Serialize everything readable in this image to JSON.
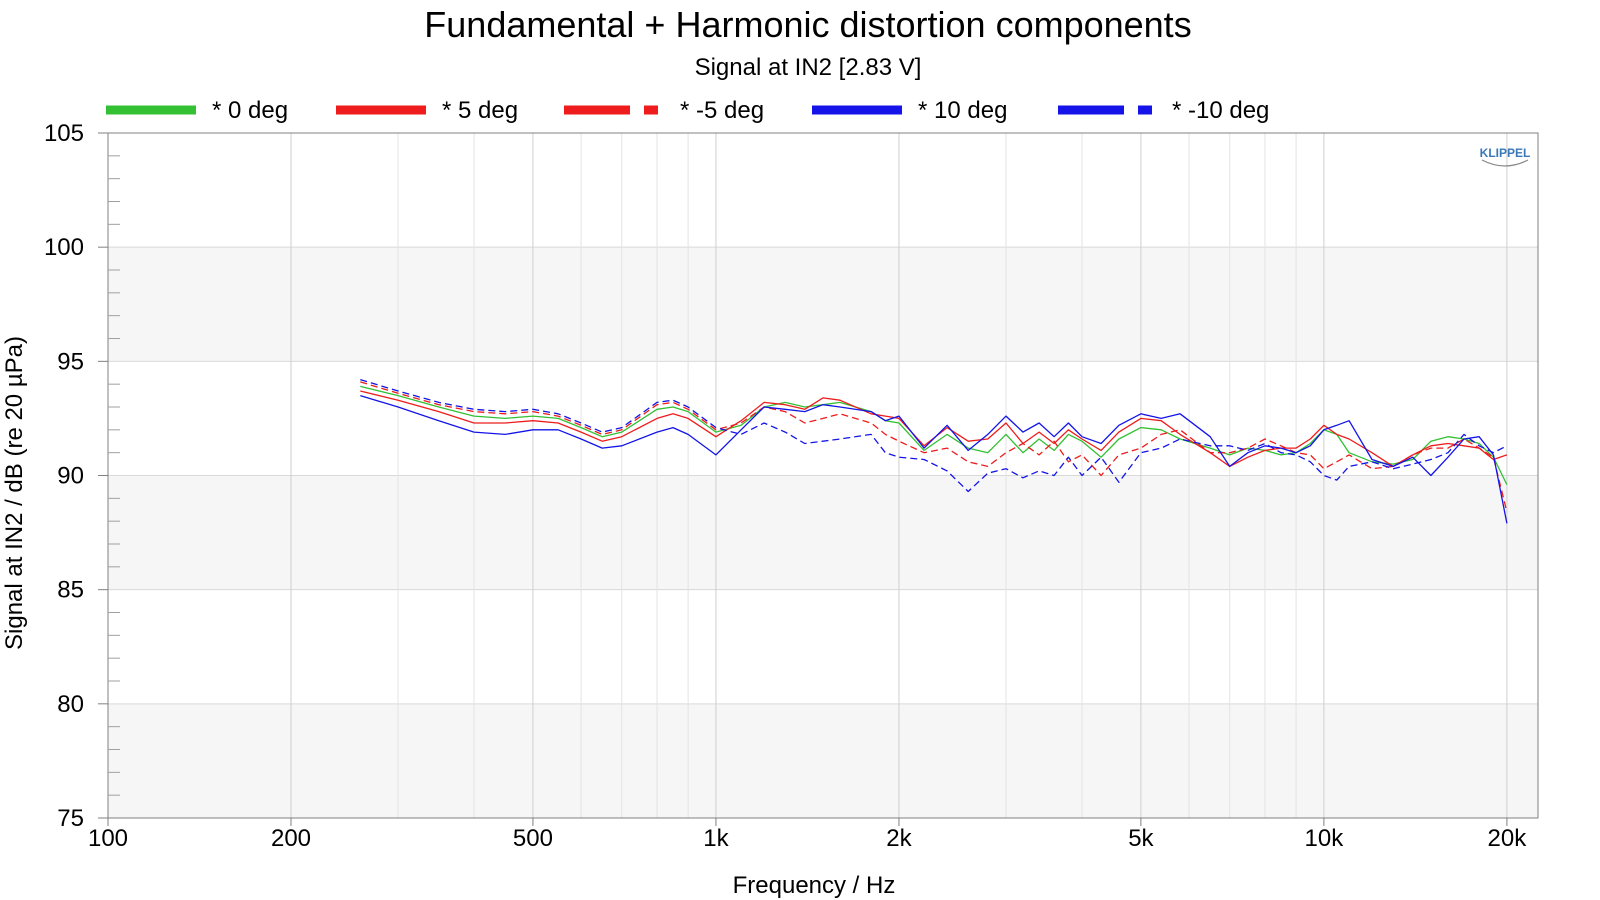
{
  "chart_data": {
    "type": "line",
    "title": "Fundamental + Harmonic distortion components",
    "subtitle": "Signal at IN2 [2.83 V]",
    "xlabel": "Frequency / Hz",
    "ylabel": "Signal at IN2 / dB (re 20 µPa)",
    "xscale": "log",
    "xlim": [
      100,
      22500
    ],
    "ylim": [
      75,
      105
    ],
    "x_ticks": [
      100,
      200,
      500,
      1000,
      2000,
      5000,
      10000,
      20000
    ],
    "x_tick_labels": [
      "100",
      "200",
      "500",
      "1k",
      "2k",
      "5k",
      "10k",
      "20k"
    ],
    "y_ticks": [
      75,
      80,
      85,
      90,
      95,
      100,
      105
    ],
    "y_tick_labels": [
      "75",
      "80",
      "85",
      "90",
      "95",
      "100",
      "105"
    ],
    "grid": true,
    "legend_position": "top",
    "logo_text": "KLIPPEL",
    "series": [
      {
        "name": "* 0 deg",
        "color": "#33c033",
        "dash": "solid",
        "points": [
          [
            260,
            93.9
          ],
          [
            300,
            93.5
          ],
          [
            350,
            93.0
          ],
          [
            400,
            92.6
          ],
          [
            450,
            92.5
          ],
          [
            500,
            92.6
          ],
          [
            550,
            92.5
          ],
          [
            600,
            92.1
          ],
          [
            650,
            91.7
          ],
          [
            700,
            91.9
          ],
          [
            800,
            92.9
          ],
          [
            850,
            93.0
          ],
          [
            900,
            92.8
          ],
          [
            1000,
            91.9
          ],
          [
            1100,
            92.2
          ],
          [
            1200,
            93.0
          ],
          [
            1300,
            93.2
          ],
          [
            1400,
            93.0
          ],
          [
            1500,
            93.1
          ],
          [
            1600,
            93.2
          ],
          [
            1800,
            92.8
          ],
          [
            1900,
            92.4
          ],
          [
            2000,
            92.3
          ],
          [
            2200,
            91.1
          ],
          [
            2400,
            91.8
          ],
          [
            2600,
            91.2
          ],
          [
            2800,
            91.0
          ],
          [
            3000,
            91.8
          ],
          [
            3200,
            91.0
          ],
          [
            3400,
            91.6
          ],
          [
            3600,
            91.1
          ],
          [
            3800,
            91.8
          ],
          [
            4000,
            91.5
          ],
          [
            4300,
            90.8
          ],
          [
            4600,
            91.6
          ],
          [
            5000,
            92.1
          ],
          [
            5400,
            92.0
          ],
          [
            5800,
            91.6
          ],
          [
            6500,
            91.2
          ],
          [
            7000,
            90.9
          ],
          [
            7500,
            91.2
          ],
          [
            8000,
            91.1
          ],
          [
            8500,
            90.9
          ],
          [
            9000,
            91.0
          ],
          [
            9500,
            91.4
          ],
          [
            10000,
            92.0
          ],
          [
            10500,
            91.8
          ],
          [
            11000,
            91.0
          ],
          [
            12000,
            90.6
          ],
          [
            13000,
            90.5
          ],
          [
            14000,
            90.7
          ],
          [
            15000,
            91.5
          ],
          [
            16000,
            91.7
          ],
          [
            17000,
            91.6
          ],
          [
            18000,
            91.4
          ],
          [
            19000,
            90.8
          ],
          [
            20000,
            89.6
          ]
        ]
      },
      {
        "name": "* 5 deg",
        "color": "#ee1c1c",
        "dash": "solid",
        "points": [
          [
            260,
            93.7
          ],
          [
            300,
            93.3
          ],
          [
            350,
            92.8
          ],
          [
            400,
            92.3
          ],
          [
            450,
            92.3
          ],
          [
            500,
            92.4
          ],
          [
            550,
            92.3
          ],
          [
            600,
            91.9
          ],
          [
            650,
            91.5
          ],
          [
            700,
            91.7
          ],
          [
            800,
            92.5
          ],
          [
            850,
            92.7
          ],
          [
            900,
            92.5
          ],
          [
            1000,
            91.7
          ],
          [
            1100,
            92.4
          ],
          [
            1200,
            93.2
          ],
          [
            1300,
            93.1
          ],
          [
            1400,
            92.9
          ],
          [
            1500,
            93.4
          ],
          [
            1600,
            93.3
          ],
          [
            1800,
            92.7
          ],
          [
            1900,
            92.6
          ],
          [
            2000,
            92.5
          ],
          [
            2200,
            91.3
          ],
          [
            2400,
            92.1
          ],
          [
            2600,
            91.5
          ],
          [
            2800,
            91.6
          ],
          [
            3000,
            92.3
          ],
          [
            3200,
            91.4
          ],
          [
            3400,
            91.9
          ],
          [
            3600,
            91.4
          ],
          [
            3800,
            92.0
          ],
          [
            4000,
            91.6
          ],
          [
            4300,
            91.1
          ],
          [
            4600,
            91.9
          ],
          [
            5000,
            92.5
          ],
          [
            5400,
            92.4
          ],
          [
            5800,
            91.8
          ],
          [
            6500,
            91.0
          ],
          [
            7000,
            90.4
          ],
          [
            7500,
            90.8
          ],
          [
            8000,
            91.1
          ],
          [
            8500,
            91.2
          ],
          [
            9000,
            91.2
          ],
          [
            9500,
            91.6
          ],
          [
            10000,
            92.2
          ],
          [
            10500,
            91.8
          ],
          [
            11000,
            91.6
          ],
          [
            12000,
            91.0
          ],
          [
            13000,
            90.4
          ],
          [
            14000,
            90.9
          ],
          [
            15000,
            91.3
          ],
          [
            16000,
            91.4
          ],
          [
            17000,
            91.3
          ],
          [
            18000,
            91.2
          ],
          [
            19000,
            90.7
          ],
          [
            20000,
            90.9
          ]
        ]
      },
      {
        "name": "* -5 deg",
        "color": "#ee1c1c",
        "dash": "dashed",
        "points": [
          [
            260,
            94.1
          ],
          [
            300,
            93.6
          ],
          [
            350,
            93.1
          ],
          [
            400,
            92.8
          ],
          [
            450,
            92.7
          ],
          [
            500,
            92.8
          ],
          [
            550,
            92.6
          ],
          [
            600,
            92.2
          ],
          [
            650,
            91.8
          ],
          [
            700,
            92.0
          ],
          [
            800,
            93.1
          ],
          [
            850,
            93.2
          ],
          [
            900,
            92.9
          ],
          [
            1000,
            92.0
          ],
          [
            1100,
            92.3
          ],
          [
            1200,
            93.0
          ],
          [
            1300,
            92.8
          ],
          [
            1400,
            92.3
          ],
          [
            1500,
            92.5
          ],
          [
            1600,
            92.7
          ],
          [
            1800,
            92.3
          ],
          [
            1900,
            91.8
          ],
          [
            2000,
            91.5
          ],
          [
            2200,
            91.0
          ],
          [
            2400,
            91.2
          ],
          [
            2600,
            90.6
          ],
          [
            2800,
            90.4
          ],
          [
            3000,
            91.0
          ],
          [
            3200,
            91.4
          ],
          [
            3400,
            90.9
          ],
          [
            3600,
            91.5
          ],
          [
            3800,
            90.6
          ],
          [
            4000,
            90.9
          ],
          [
            4300,
            90.0
          ],
          [
            4600,
            90.9
          ],
          [
            5000,
            91.2
          ],
          [
            5400,
            91.8
          ],
          [
            5800,
            92.0
          ],
          [
            6500,
            91.0
          ],
          [
            7000,
            91.0
          ],
          [
            7500,
            91.2
          ],
          [
            8000,
            91.6
          ],
          [
            8500,
            91.3
          ],
          [
            9000,
            91.0
          ],
          [
            9500,
            90.9
          ],
          [
            10000,
            90.3
          ],
          [
            10500,
            90.6
          ],
          [
            11000,
            90.9
          ],
          [
            12000,
            90.3
          ],
          [
            13000,
            90.4
          ],
          [
            14000,
            90.9
          ],
          [
            15000,
            91.2
          ],
          [
            16000,
            91.2
          ],
          [
            17000,
            91.6
          ],
          [
            18000,
            91.2
          ],
          [
            19000,
            90.8
          ],
          [
            20000,
            88.4
          ]
        ]
      },
      {
        "name": "* 10 deg",
        "color": "#1414e8",
        "dash": "solid",
        "points": [
          [
            260,
            93.5
          ],
          [
            300,
            93.0
          ],
          [
            350,
            92.4
          ],
          [
            400,
            91.9
          ],
          [
            450,
            91.8
          ],
          [
            500,
            92.0
          ],
          [
            550,
            92.0
          ],
          [
            600,
            91.6
          ],
          [
            650,
            91.2
          ],
          [
            700,
            91.3
          ],
          [
            800,
            91.9
          ],
          [
            850,
            92.1
          ],
          [
            900,
            91.8
          ],
          [
            1000,
            90.9
          ],
          [
            1100,
            92.0
          ],
          [
            1200,
            93.0
          ],
          [
            1300,
            92.9
          ],
          [
            1400,
            92.8
          ],
          [
            1500,
            93.1
          ],
          [
            1600,
            93.0
          ],
          [
            1800,
            92.8
          ],
          [
            1900,
            92.4
          ],
          [
            2000,
            92.6
          ],
          [
            2200,
            91.2
          ],
          [
            2400,
            92.2
          ],
          [
            2600,
            91.1
          ],
          [
            2800,
            91.8
          ],
          [
            3000,
            92.6
          ],
          [
            3200,
            91.9
          ],
          [
            3400,
            92.3
          ],
          [
            3600,
            91.7
          ],
          [
            3800,
            92.3
          ],
          [
            4000,
            91.7
          ],
          [
            4300,
            91.4
          ],
          [
            4600,
            92.2
          ],
          [
            5000,
            92.7
          ],
          [
            5400,
            92.5
          ],
          [
            5800,
            92.7
          ],
          [
            6500,
            91.7
          ],
          [
            7000,
            90.4
          ],
          [
            7500,
            91.0
          ],
          [
            8000,
            91.3
          ],
          [
            8500,
            91.2
          ],
          [
            9000,
            91.0
          ],
          [
            9500,
            91.3
          ],
          [
            10000,
            92.0
          ],
          [
            10500,
            92.2
          ],
          [
            11000,
            92.4
          ],
          [
            12000,
            90.7
          ],
          [
            13000,
            90.4
          ],
          [
            14000,
            90.8
          ],
          [
            15000,
            90.0
          ],
          [
            16000,
            90.8
          ],
          [
            17000,
            91.6
          ],
          [
            18000,
            91.7
          ],
          [
            19000,
            90.9
          ],
          [
            20000,
            87.9
          ]
        ]
      },
      {
        "name": "* -10 deg",
        "color": "#1414e8",
        "dash": "dashed",
        "points": [
          [
            260,
            94.2
          ],
          [
            300,
            93.7
          ],
          [
            350,
            93.2
          ],
          [
            400,
            92.9
          ],
          [
            450,
            92.8
          ],
          [
            500,
            92.9
          ],
          [
            550,
            92.7
          ],
          [
            600,
            92.3
          ],
          [
            650,
            91.9
          ],
          [
            700,
            92.1
          ],
          [
            800,
            93.2
          ],
          [
            850,
            93.3
          ],
          [
            900,
            93.0
          ],
          [
            1000,
            92.1
          ],
          [
            1100,
            91.8
          ],
          [
            1200,
            92.3
          ],
          [
            1300,
            91.9
          ],
          [
            1400,
            91.4
          ],
          [
            1500,
            91.5
          ],
          [
            1600,
            91.6
          ],
          [
            1800,
            91.8
          ],
          [
            1900,
            91.0
          ],
          [
            2000,
            90.8
          ],
          [
            2200,
            90.7
          ],
          [
            2400,
            90.2
          ],
          [
            2600,
            89.3
          ],
          [
            2800,
            90.1
          ],
          [
            3000,
            90.3
          ],
          [
            3200,
            89.9
          ],
          [
            3400,
            90.2
          ],
          [
            3600,
            90.0
          ],
          [
            3800,
            90.8
          ],
          [
            4000,
            90.0
          ],
          [
            4300,
            90.8
          ],
          [
            4600,
            89.7
          ],
          [
            5000,
            91.0
          ],
          [
            5400,
            91.2
          ],
          [
            5800,
            91.6
          ],
          [
            6500,
            91.3
          ],
          [
            7000,
            91.3
          ],
          [
            7500,
            91.1
          ],
          [
            8000,
            91.4
          ],
          [
            8500,
            91.0
          ],
          [
            9000,
            90.9
          ],
          [
            9500,
            90.6
          ],
          [
            10000,
            90.0
          ],
          [
            10500,
            89.8
          ],
          [
            11000,
            90.4
          ],
          [
            12000,
            90.6
          ],
          [
            13000,
            90.3
          ],
          [
            14000,
            90.5
          ],
          [
            15000,
            90.7
          ],
          [
            16000,
            91.0
          ],
          [
            17000,
            91.8
          ],
          [
            18000,
            91.3
          ],
          [
            19000,
            91.0
          ],
          [
            20000,
            91.3
          ]
        ]
      }
    ]
  }
}
